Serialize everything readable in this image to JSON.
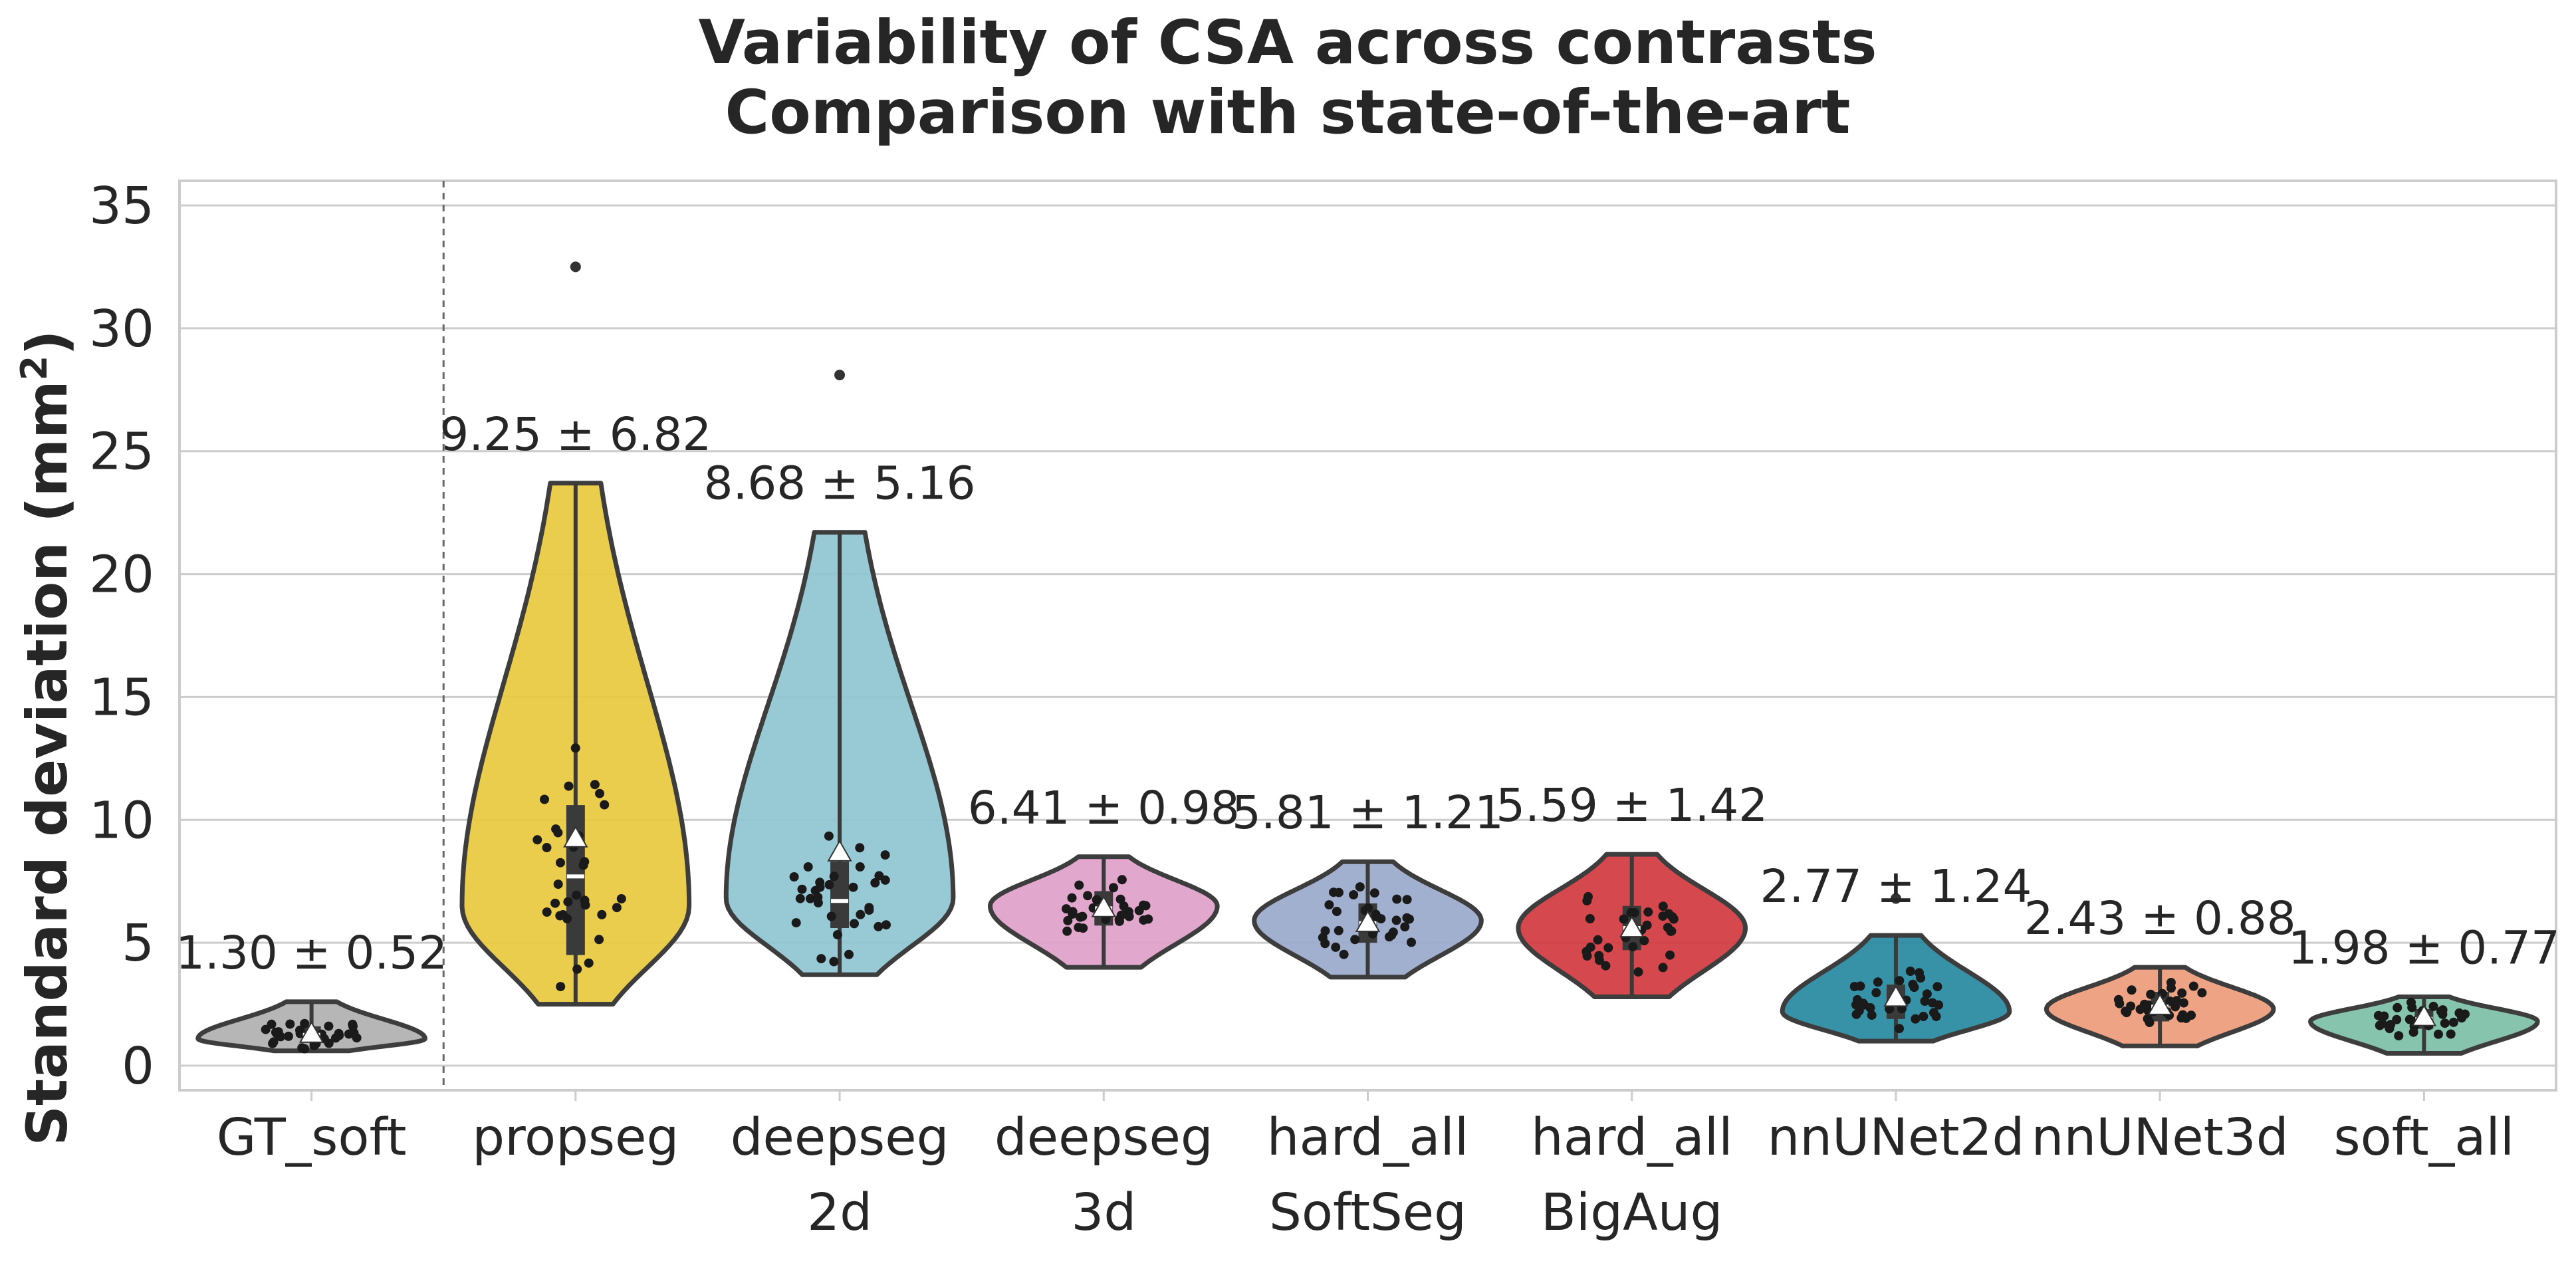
{
  "chart_data": {
    "type": "violin",
    "title": "Variability of CSA across contrasts",
    "subtitle": "Comparison with state-of-the-art",
    "ylabel": "Standard deviation (mm²)",
    "ylabel_text": "Standard deviation (mm",
    "ylabel_sup": "2",
    "ylabel_close": ")",
    "xlabel": "",
    "ylim": [
      -1,
      36
    ],
    "yticks": [
      0,
      5,
      10,
      15,
      20,
      25,
      30,
      35
    ],
    "ytick_labels": [
      "0",
      "5",
      "10",
      "15",
      "20",
      "25",
      "30",
      "35"
    ],
    "grid": true,
    "separator_after": "GT_soft",
    "categories": [
      {
        "label_lines": [
          "GT_soft"
        ],
        "color": "#b0b0b0",
        "mean": 1.3,
        "std": 0.52,
        "annotation": "1.30 ± 0.52",
        "min": 0.6,
        "max": 2.6,
        "mode": 1.1,
        "q1": 0.95,
        "median": 1.25,
        "q3": 1.6,
        "outliers": []
      },
      {
        "label_lines": [
          "propseg"
        ],
        "color": "#e8c93e",
        "mean": 9.25,
        "std": 6.82,
        "annotation": "9.25 ± 6.82",
        "min": 2.5,
        "max": 23.7,
        "mode": 6.5,
        "q1": 4.5,
        "median": 7.7,
        "q3": 10.6,
        "outliers": [
          32.5
        ]
      },
      {
        "label_lines": [
          "deepseg",
          "2d"
        ],
        "color": "#8fc5d3",
        "mean": 8.68,
        "std": 5.16,
        "annotation": "8.68 ± 5.16",
        "min": 3.7,
        "max": 21.7,
        "mode": 6.8,
        "q1": 5.6,
        "median": 6.7,
        "q3": 8.3,
        "outliers": [
          28.1
        ]
      },
      {
        "label_lines": [
          "deepseg",
          "3d"
        ],
        "color": "#df9fc8",
        "mean": 6.41,
        "std": 0.98,
        "annotation": "6.41 ± 0.98",
        "min": 4.0,
        "max": 8.5,
        "mode": 6.5,
        "q1": 5.7,
        "median": 6.4,
        "q3": 7.1,
        "outliers": []
      },
      {
        "label_lines": [
          "hard_all",
          "SoftSeg"
        ],
        "color": "#9aa9cb",
        "mean": 5.81,
        "std": 1.21,
        "annotation": "5.81 ± 1.21",
        "min": 3.6,
        "max": 8.3,
        "mode": 5.9,
        "q1": 5.0,
        "median": 5.8,
        "q3": 6.6,
        "outliers": []
      },
      {
        "label_lines": [
          "hard_all",
          "BigAug"
        ],
        "color": "#d1393f",
        "mean": 5.59,
        "std": 1.42,
        "annotation": "5.59 ± 1.42",
        "min": 2.8,
        "max": 8.6,
        "mode": 5.6,
        "q1": 4.7,
        "median": 5.6,
        "q3": 6.5,
        "outliers": []
      },
      {
        "label_lines": [
          "nnUNet2d"
        ],
        "color": "#27899f",
        "mean": 2.77,
        "std": 1.24,
        "annotation": "2.77 ± 1.24",
        "min": 1.0,
        "max": 5.3,
        "mode": 2.2,
        "q1": 1.9,
        "median": 2.6,
        "q3": 3.3,
        "outliers": [
          6.8
        ]
      },
      {
        "label_lines": [
          "nnUNet3d"
        ],
        "color": "#eb9b7a",
        "mean": 2.43,
        "std": 0.88,
        "annotation": "2.43 ± 0.88",
        "min": 0.8,
        "max": 4.0,
        "mode": 2.3,
        "q1": 1.8,
        "median": 2.4,
        "q3": 3.0,
        "outliers": []
      },
      {
        "label_lines": [
          "soft_all"
        ],
        "color": "#7cbfa7",
        "mean": 1.98,
        "std": 0.77,
        "annotation": "1.98 ± 0.77",
        "min": 0.5,
        "max": 2.8,
        "mode": 1.8,
        "q1": 1.5,
        "median": 1.9,
        "q3": 2.3,
        "outliers": []
      }
    ]
  }
}
